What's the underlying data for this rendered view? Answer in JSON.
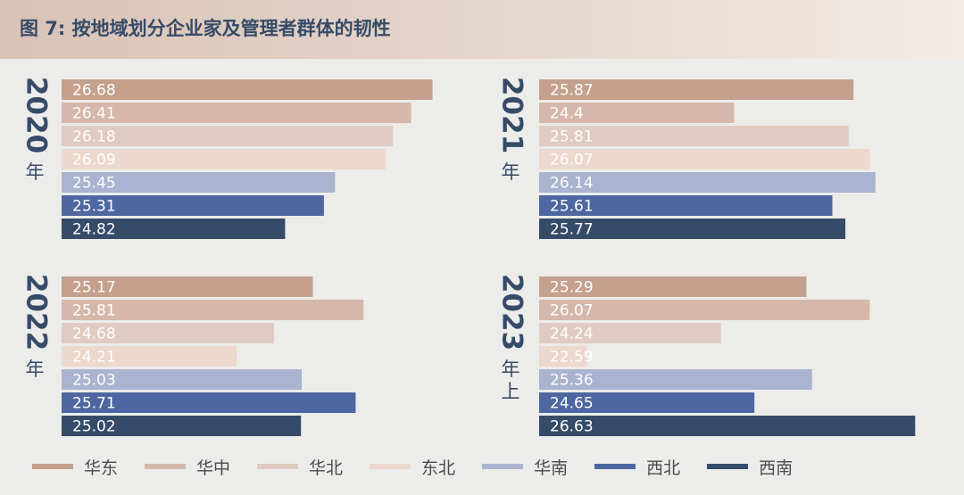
{
  "title": "图 7: 按地域划分企业家及管理者群体的韧性",
  "regions": [
    "华东",
    "华中",
    "华北",
    "东北",
    "华南",
    "西北",
    "西南"
  ],
  "colors": [
    "#c4a08d",
    "#d5b8aa",
    "#dfcbc1",
    "#ecd8cc",
    "#aab3cf",
    "#4e67a0",
    "#364b68"
  ],
  "chart_data": [
    {
      "type": "bar",
      "orientation": "horizontal",
      "year": "2020",
      "year_suffix": "年",
      "categories": [
        "华东",
        "华中",
        "华北",
        "东北",
        "华南",
        "西北",
        "西南"
      ],
      "values": [
        26.68,
        26.41,
        26.18,
        26.09,
        25.45,
        25.31,
        24.82
      ],
      "labels": [
        "26.68",
        "26.41",
        "26.18",
        "26.09",
        "25.45",
        "25.31",
        "24.82"
      ],
      "xlim": [
        22,
        27
      ]
    },
    {
      "type": "bar",
      "orientation": "horizontal",
      "year": "2021",
      "year_suffix": "年",
      "categories": [
        "华东",
        "华中",
        "华北",
        "东北",
        "华南",
        "西北",
        "西南"
      ],
      "values": [
        25.87,
        24.4,
        25.81,
        26.07,
        26.14,
        25.61,
        25.77
      ],
      "labels": [
        "25.87",
        "24.4",
        "25.81",
        "26.07",
        "26.14",
        "25.61",
        "25.77"
      ],
      "xlim": [
        22,
        27
      ]
    },
    {
      "type": "bar",
      "orientation": "horizontal",
      "year": "2022",
      "year_suffix": "年",
      "categories": [
        "华东",
        "华中",
        "华北",
        "东北",
        "华南",
        "西北",
        "西南"
      ],
      "values": [
        25.17,
        25.81,
        24.68,
        24.21,
        25.03,
        25.71,
        25.02
      ],
      "labels": [
        "25.17",
        "25.81",
        "24.68",
        "24.21",
        "25.03",
        "25.71",
        "25.02"
      ],
      "xlim": [
        22,
        27
      ]
    },
    {
      "type": "bar",
      "orientation": "horizontal",
      "year": "2023",
      "year_suffix": "年上",
      "categories": [
        "华东",
        "华中",
        "华北",
        "东北",
        "华南",
        "西北",
        "西南"
      ],
      "values": [
        25.29,
        26.07,
        24.24,
        22.59,
        25.36,
        24.65,
        26.63
      ],
      "labels": [
        "25.29",
        "26.07",
        "24.24",
        "22.59",
        "25.36",
        "24.65",
        "26.63"
      ],
      "xlim": [
        22,
        27
      ]
    }
  ]
}
